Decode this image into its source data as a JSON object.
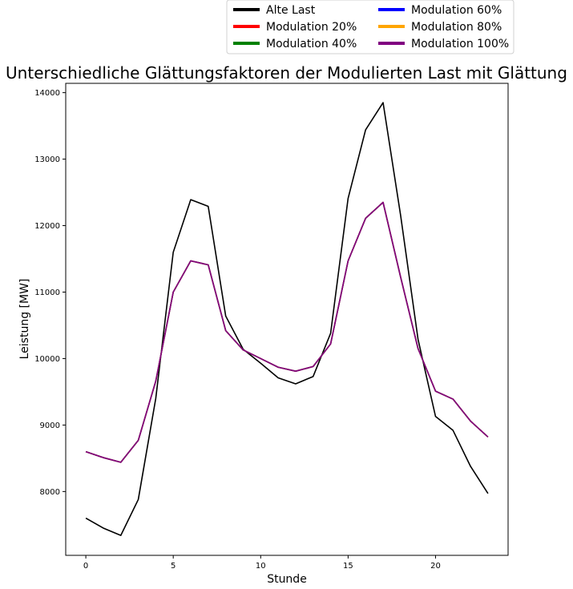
{
  "chart_data": {
    "type": "line",
    "title": "Unterschiedliche Glättungsfaktoren der Modulierten Last mit Glättung",
    "xlabel": "Stunde",
    "ylabel": "Leistung [MW]",
    "xlim": [
      -1.15,
      24.15
    ],
    "ylim": [
      7040,
      14140
    ],
    "xticks": [
      0,
      5,
      10,
      15,
      20
    ],
    "yticks": [
      8000,
      9000,
      10000,
      11000,
      12000,
      13000,
      14000
    ],
    "grid": false,
    "legend_position": "top-right, above plot",
    "x": [
      0,
      1,
      2,
      3,
      4,
      5,
      6,
      7,
      8,
      9,
      10,
      11,
      12,
      13,
      14,
      15,
      16,
      17,
      18,
      19,
      20,
      21,
      22,
      23
    ],
    "series": [
      {
        "name": "Alte Last",
        "color": "#000000",
        "values": [
          7600,
          7450,
          7340,
          7880,
          9400,
          11600,
          12390,
          12290,
          10640,
          10140,
          9930,
          9710,
          9620,
          9730,
          10380,
          12410,
          13440,
          13850,
          12160,
          10290,
          9130,
          8920,
          8380,
          7970
        ]
      },
      {
        "name": "Modulation 20%",
        "color": "#ff0000",
        "values": [
          8600,
          8510,
          8440,
          8770,
          9660,
          11000,
          11470,
          11410,
          10420,
          10130,
          10000,
          9870,
          9810,
          9880,
          10220,
          11470,
          12110,
          12350,
          11230,
          10150,
          9510,
          9390,
          9060,
          8820
        ]
      },
      {
        "name": "Modulation 40%",
        "color": "#008000",
        "values": [
          8600,
          8510,
          8440,
          8770,
          9660,
          11000,
          11470,
          11410,
          10420,
          10130,
          10000,
          9870,
          9810,
          9880,
          10220,
          11470,
          12110,
          12350,
          11230,
          10150,
          9510,
          9390,
          9060,
          8820
        ]
      },
      {
        "name": "Modulation 60%",
        "color": "#0000ff",
        "values": [
          8600,
          8510,
          8440,
          8770,
          9660,
          11000,
          11470,
          11410,
          10420,
          10130,
          10000,
          9870,
          9810,
          9880,
          10220,
          11470,
          12110,
          12350,
          11230,
          10150,
          9510,
          9390,
          9060,
          8820
        ]
      },
      {
        "name": "Modulation 80%",
        "color": "#ffa500",
        "values": [
          8600,
          8510,
          8440,
          8770,
          9660,
          11000,
          11470,
          11410,
          10420,
          10130,
          10000,
          9870,
          9810,
          9880,
          10220,
          11470,
          12110,
          12350,
          11230,
          10150,
          9510,
          9390,
          9060,
          8820
        ]
      },
      {
        "name": "Modulation 100%",
        "color": "#800080",
        "values": [
          8600,
          8510,
          8440,
          8770,
          9660,
          11000,
          11470,
          11410,
          10420,
          10130,
          10000,
          9870,
          9810,
          9880,
          10220,
          11470,
          12110,
          12350,
          11230,
          10150,
          9510,
          9390,
          9060,
          8820
        ]
      }
    ]
  }
}
